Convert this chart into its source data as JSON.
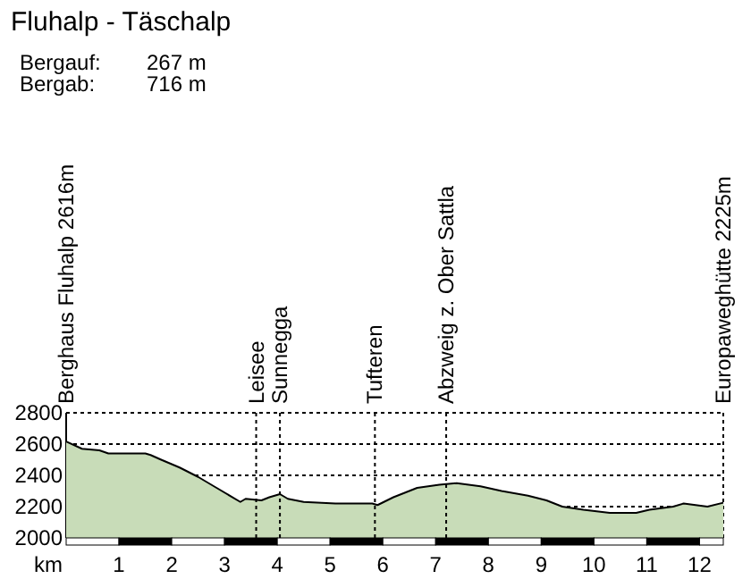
{
  "chart_data": {
    "type": "area",
    "title": "Fluhalp - Täschalp",
    "annotations": [
      "Bergauf: 267 m",
      "Bergab: 716 m",
      "Berghaus Fluhalp 2616m",
      "Europaweghütte 2225m"
    ],
    "xlabel": "km",
    "x": [
      0,
      0.3,
      0.63,
      0.8,
      1.5,
      1.6,
      1.8,
      2.15,
      2.5,
      2.85,
      3.3,
      3.4,
      3.7,
      3.85,
      4.05,
      4.2,
      4.5,
      5.1,
      5.8,
      5.9,
      6.2,
      6.65,
      7.07,
      7.4,
      7.85,
      8.25,
      8.75,
      9.1,
      9.4,
      9.8,
      10.3,
      10.8,
      11.05,
      11.5,
      11.7,
      12.15,
      12.45
    ],
    "series": [
      {
        "color": "#c8dcb8",
        "values": [
          2616,
          2570,
          2560,
          2540,
          2540,
          2530,
          2500,
          2450,
          2390,
          2320,
          2230,
          2250,
          2240,
          2260,
          2280,
          2250,
          2230,
          2220,
          2220,
          2210,
          2260,
          2320,
          2340,
          2350,
          2330,
          2300,
          2270,
          2240,
          2200,
          2180,
          2160,
          2160,
          2180,
          2200,
          2220,
          2200,
          2225
        ]
      }
    ],
    "xlim": [
      0,
      12.45
    ],
    "xticks": [
      1,
      2,
      3,
      4,
      5,
      6,
      7,
      8,
      9,
      10,
      11,
      12
    ],
    "ylim": [
      2000,
      2800
    ],
    "yticks": [
      2000,
      2200,
      2400,
      2600,
      2800
    ],
    "grid": "y",
    "ref_lines": [
      {
        "axis": "x",
        "value": 3.6,
        "label": "Leisee",
        "line_style": "dotted"
      },
      {
        "axis": "x",
        "value": 4.05,
        "label": "Sunnegga",
        "line_style": "dotted"
      },
      {
        "axis": "x",
        "value": 5.85,
        "label": "Tufteren",
        "line_style": "dotted"
      },
      {
        "axis": "x",
        "value": 7.2,
        "label": "Abzweig z. Ober Sattla",
        "line_style": "dotted"
      }
    ]
  }
}
